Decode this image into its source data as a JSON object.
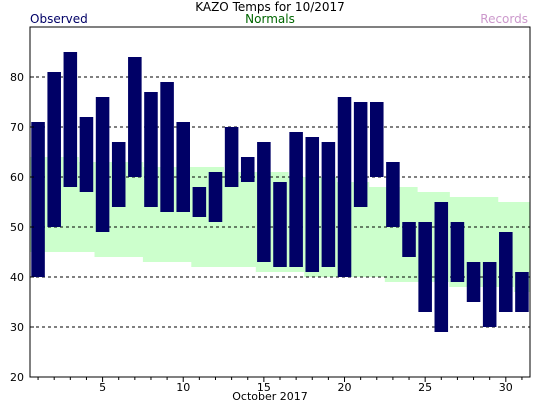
{
  "chart_data": {
    "type": "bar",
    "title": "KAZO Temps for 10/2017",
    "xlabel": "October 2017",
    "ylabel": "",
    "ylim": [
      20,
      90
    ],
    "xlim": [
      0.5,
      31.5
    ],
    "yticks": [
      20,
      30,
      40,
      50,
      60,
      70,
      80
    ],
    "xticks": [
      5,
      10,
      15,
      20,
      25,
      30
    ],
    "grid": true,
    "legend": {
      "observed": "Observed",
      "normals": "Normals",
      "records": "Records"
    },
    "colors": {
      "observed": "#000066",
      "normals": "#ccffcc",
      "normals_text": "#006600",
      "records": "#cc99cc",
      "observed_text": "#000066"
    },
    "days": [
      1,
      2,
      3,
      4,
      5,
      6,
      7,
      8,
      9,
      10,
      11,
      12,
      13,
      14,
      15,
      16,
      17,
      18,
      19,
      20,
      21,
      22,
      23,
      24,
      25,
      26,
      27,
      28,
      29,
      30,
      31
    ],
    "series": [
      {
        "name": "Observed",
        "high": [
          71,
          81,
          85,
          72,
          76,
          67,
          84,
          77,
          79,
          71,
          58,
          61,
          70,
          64,
          67,
          59,
          69,
          68,
          67,
          76,
          75,
          75,
          63,
          51,
          51,
          55,
          51,
          43,
          43,
          49,
          41
        ],
        "low": [
          40,
          50,
          58,
          57,
          49,
          54,
          60,
          54,
          53,
          53,
          52,
          51,
          58,
          59,
          43,
          42,
          42,
          41,
          42,
          40,
          54,
          60,
          50,
          44,
          33,
          29,
          39,
          35,
          30,
          33,
          33
        ]
      },
      {
        "name": "Normals",
        "high": [
          64,
          64,
          64,
          63,
          63,
          63,
          63,
          62,
          62,
          62,
          62,
          62,
          61,
          61,
          61,
          61,
          60,
          60,
          60,
          59,
          59,
          58,
          58,
          58,
          57,
          57,
          56,
          56,
          56,
          55,
          55
        ],
        "low": [
          45,
          45,
          45,
          45,
          44,
          44,
          44,
          43,
          43,
          43,
          42,
          42,
          42,
          42,
          41,
          41,
          41,
          40,
          40,
          40,
          40,
          40,
          39,
          39,
          39,
          39,
          38,
          38,
          38,
          38,
          37
        ]
      }
    ]
  }
}
